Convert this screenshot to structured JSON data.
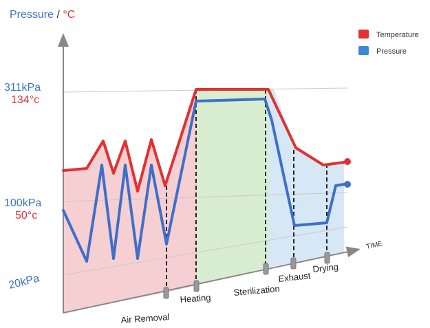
{
  "chart_data": {
    "type": "line",
    "title": "",
    "ylabel": {
      "pressure": "Pressure",
      "separator": " / ",
      "temperature": "°C"
    },
    "xlabel": "TIME",
    "y_ticks": [
      {
        "pressure": "311kPa",
        "temperature": "134°c"
      },
      {
        "pressure": "100kPa",
        "temperature": "50°c"
      },
      {
        "pressure": "20kPa",
        "temperature": ""
      }
    ],
    "phases": [
      "Air Removal",
      "Heating",
      "Sterilization",
      "Exhaust",
      "Drying"
    ],
    "legend": [
      {
        "name": "Temperature",
        "color": "#e03232"
      },
      {
        "name": "Pressure",
        "color": "#3f87d6"
      }
    ],
    "colors": {
      "temperature": "#e03232",
      "pressure": "#3f87d6",
      "zone_air_removal": "#f6cfd3",
      "zone_heating": "#d8edd0",
      "zone_sterilization": "#e5f1e2",
      "zone_after": "#d6e8f6"
    },
    "series": [
      {
        "name": "Temperature",
        "unit": "°C",
        "x": [
          0,
          0.6,
          1.0,
          1.3,
          1.6,
          1.9,
          2.2,
          2.5,
          2.8,
          3.2,
          3.6,
          4.0,
          4.4,
          5.2,
          6.0,
          6.4,
          7.0,
          7.5,
          8.0,
          8.4,
          8.8,
          9.4,
          10.0
        ],
        "values": [
          60,
          61,
          77,
          61,
          77,
          61,
          77,
          64,
          76,
          66,
          120,
          134,
          134,
          134,
          134,
          134,
          112,
          96,
          89,
          86,
          86,
          87,
          88
        ]
      },
      {
        "name": "Pressure",
        "unit": "kPa",
        "x": [
          0,
          0.8,
          1.3,
          1.7,
          2.1,
          2.5,
          2.9,
          3.3,
          3.7,
          4.2,
          5.3,
          6.0,
          6.6,
          7.2,
          8.0,
          8.6,
          8.8,
          9.4,
          10.0
        ],
        "values": [
          100,
          20,
          160,
          20,
          160,
          20,
          160,
          40,
          200,
          300,
          300,
          300,
          200,
          80,
          75,
          80,
          150,
          155,
          155
        ]
      }
    ]
  }
}
